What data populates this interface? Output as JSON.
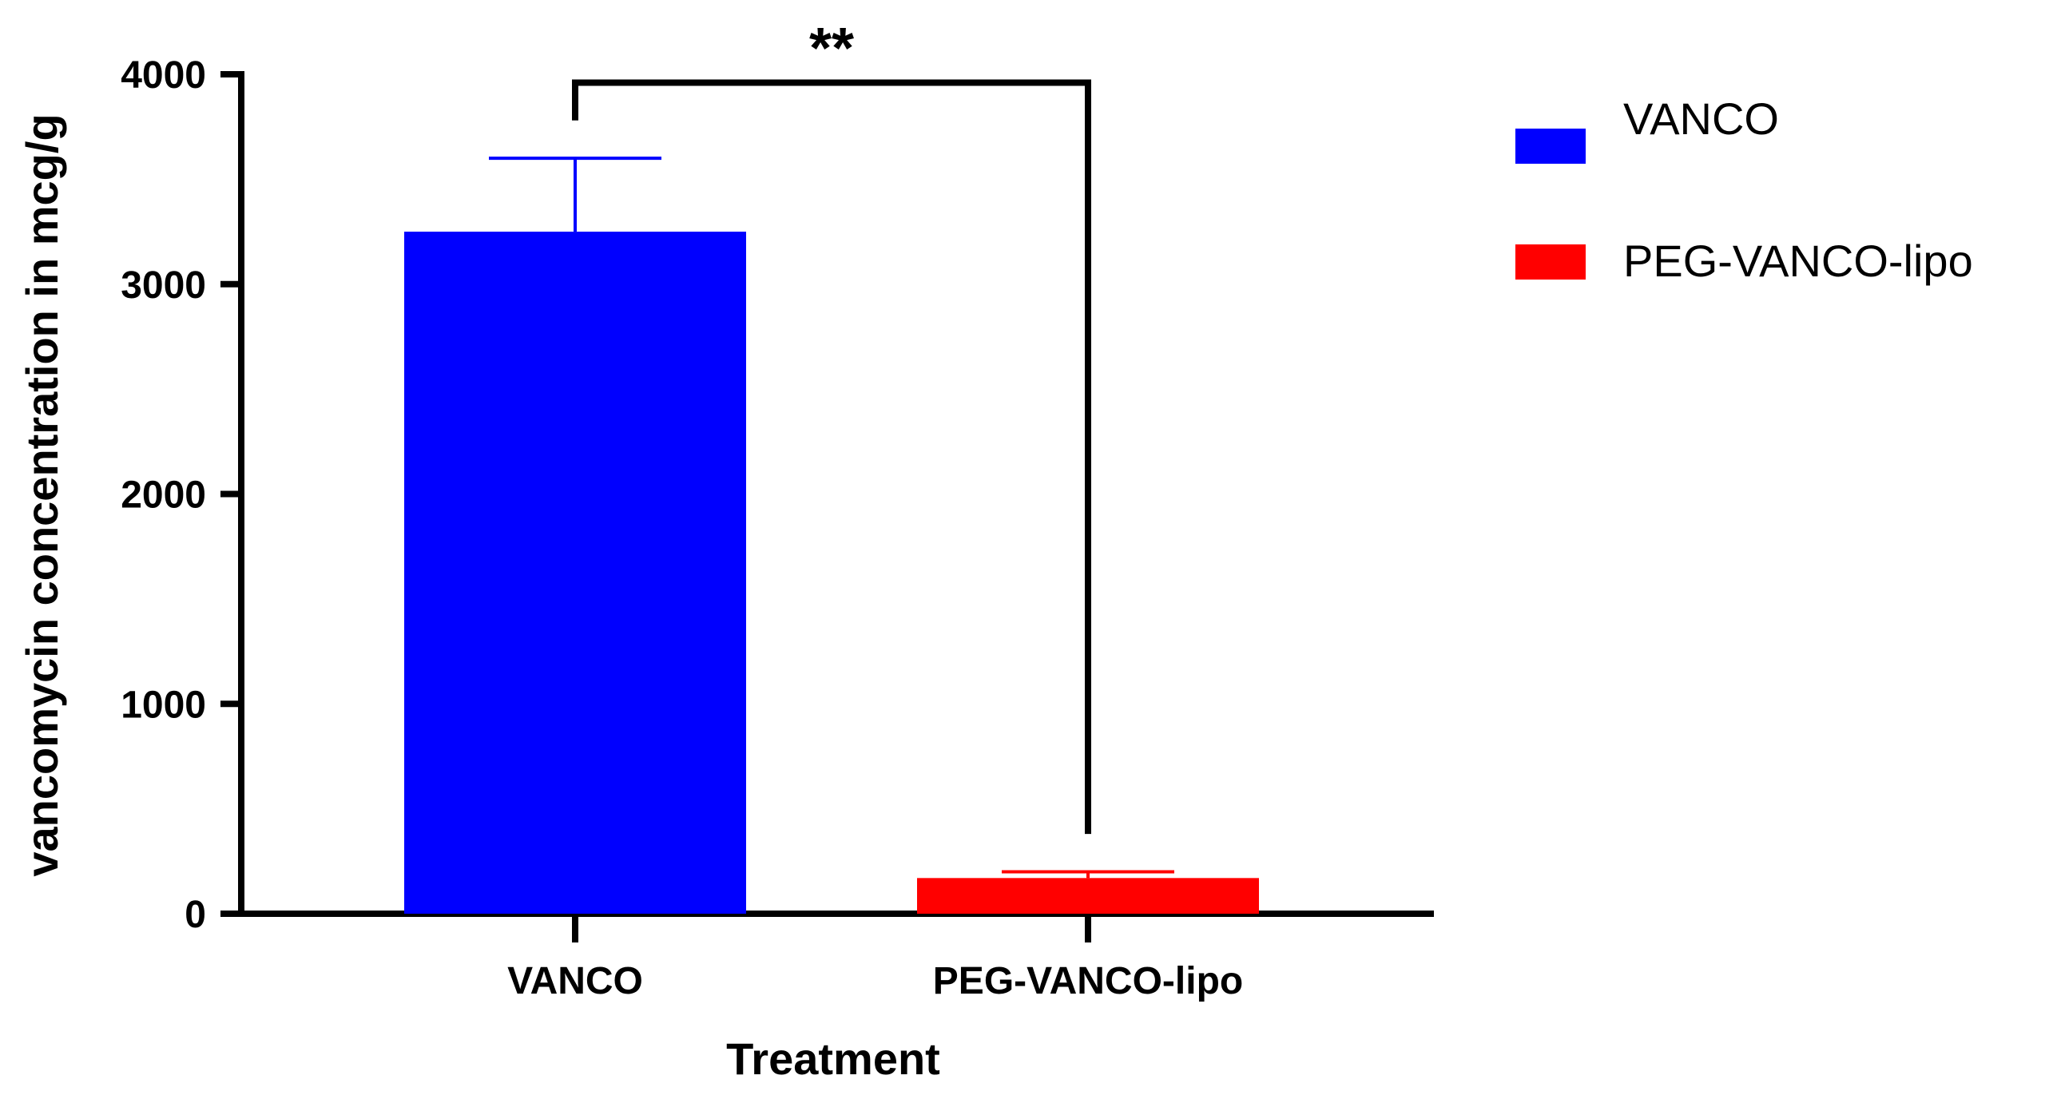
{
  "chart_data": {
    "type": "bar",
    "title": "",
    "xlabel": "Treatment",
    "ylabel": "vancomycin concentration in mcg/g",
    "ylim": [
      0,
      4000
    ],
    "yticks": [
      0,
      1000,
      2000,
      3000,
      4000
    ],
    "ytick_labels": [
      "0",
      "1000",
      "2000",
      "3000",
      "4000"
    ],
    "categories": [
      "VANCO",
      "PEG-VANCO-lipo"
    ],
    "values": [
      3250,
      170
    ],
    "error_upper": [
      3600,
      200
    ],
    "colors": [
      "#0000ff",
      "#ff0000"
    ],
    "legend": {
      "position": "top-right",
      "entries": [
        {
          "label": "VANCO",
          "color": "#0000ff"
        },
        {
          "label": "PEG-VANCO-lipo",
          "color": "#ff0000"
        }
      ]
    },
    "significance": {
      "label": "**",
      "between": [
        "VANCO",
        "PEG-VANCO-lipo"
      ],
      "left_end_value": 3780,
      "right_end_value": 380,
      "bracket_value": 3960
    }
  }
}
